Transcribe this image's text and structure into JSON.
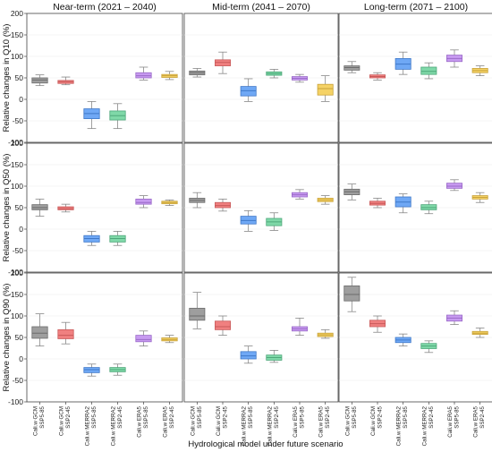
{
  "chart_data": {
    "type": "box",
    "xlabel": "Hydrological model under future scenario",
    "columns": [
      "Near-term (2021 – 2040)",
      "Mid-term (2041 – 2070)",
      "Long-term (2071 – 2100)"
    ],
    "rows": [
      {
        "ylabel": "Relative changes in Q10 (%)"
      },
      {
        "ylabel": "Relative changes in Q50 (%)"
      },
      {
        "ylabel": "Relative changes in Q90 (%)"
      }
    ],
    "ylim": [
      -100,
      200
    ],
    "yticks": [
      -100,
      -50,
      0,
      50,
      100,
      150,
      200
    ],
    "categories": [
      [
        "Cali.w GCM",
        "SSP5-85"
      ],
      [
        "Cali.w GCM",
        "SSP2-45"
      ],
      [
        "Cali.w MERRA2",
        "SSP5-85"
      ],
      [
        "Cali.w MERRA2",
        "SSP2-45"
      ],
      [
        "Cali.w ERA5",
        "SSP5-85"
      ],
      [
        "Cali.w ERA5",
        "SSP2-45"
      ]
    ],
    "colors": [
      "#9e9e9e",
      "#f08080",
      "#6fa8f5",
      "#7fd8a8",
      "#c79af0",
      "#f5d265"
    ],
    "edge_colors": [
      "#6b6b6b",
      "#c85a5a",
      "#3f78c8",
      "#4ea77a",
      "#9a6ac8",
      "#c8a23a"
    ],
    "panels": [
      [
        [
          [
            32,
            38,
            45,
            50,
            57
          ],
          [
            34,
            37,
            41,
            44,
            52
          ],
          [
            -68,
            -45,
            -33,
            -22,
            -5
          ],
          [
            -68,
            -48,
            -38,
            -27,
            -10
          ],
          [
            45,
            50,
            55,
            62,
            75
          ],
          [
            46,
            51,
            55,
            58,
            65
          ]
        ],
        [
          [
            52,
            57,
            62,
            66,
            72
          ],
          [
            60,
            78,
            86,
            92,
            110
          ],
          [
            -5,
            8,
            20,
            30,
            48
          ],
          [
            50,
            56,
            60,
            64,
            70
          ],
          [
            40,
            45,
            49,
            53,
            58
          ],
          [
            -5,
            10,
            25,
            35,
            55
          ]
        ],
        [
          [
            62,
            68,
            74,
            78,
            88
          ],
          [
            45,
            50,
            53,
            57,
            62
          ],
          [
            58,
            70,
            82,
            95,
            110
          ],
          [
            48,
            58,
            65,
            75,
            85
          ],
          [
            75,
            88,
            95,
            103,
            115
          ],
          [
            55,
            62,
            67,
            72,
            78
          ]
        ]
      ],
      [
        [
          [
            30,
            45,
            50,
            57,
            70
          ],
          [
            40,
            45,
            48,
            52,
            58
          ],
          [
            -38,
            -30,
            -22,
            -15,
            -5
          ],
          [
            -38,
            -30,
            -22,
            -15,
            -5
          ],
          [
            50,
            58,
            62,
            70,
            78
          ],
          [
            55,
            59,
            62,
            65,
            68
          ]
        ],
        [
          [
            50,
            62,
            67,
            72,
            85
          ],
          [
            42,
            50,
            55,
            62,
            70
          ],
          [
            -5,
            12,
            20,
            30,
            43
          ],
          [
            -3,
            8,
            17,
            25,
            38
          ],
          [
            70,
            75,
            80,
            85,
            92
          ],
          [
            58,
            64,
            68,
            72,
            78
          ]
        ],
        [
          [
            68,
            80,
            87,
            93,
            105
          ],
          [
            50,
            56,
            60,
            65,
            72
          ],
          [
            38,
            52,
            63,
            75,
            82
          ],
          [
            36,
            45,
            50,
            57,
            65
          ],
          [
            90,
            95,
            100,
            107,
            115
          ],
          [
            62,
            70,
            74,
            78,
            85
          ]
        ]
      ],
      [
        [
          [
            30,
            48,
            60,
            75,
            105
          ],
          [
            35,
            47,
            55,
            68,
            85
          ],
          [
            -40,
            -32,
            -25,
            -20,
            -12
          ],
          [
            -38,
            -30,
            -25,
            -20,
            -12
          ],
          [
            30,
            40,
            45,
            55,
            65
          ],
          [
            38,
            42,
            45,
            49,
            55
          ]
        ],
        [
          [
            70,
            90,
            100,
            118,
            155
          ],
          [
            55,
            68,
            75,
            88,
            100
          ],
          [
            -10,
            0,
            7,
            17,
            30
          ],
          [
            -8,
            -3,
            3,
            9,
            20
          ],
          [
            55,
            65,
            70,
            75,
            95
          ],
          [
            48,
            52,
            56,
            60,
            68
          ]
        ],
        [
          [
            110,
            135,
            150,
            170,
            190
          ],
          [
            62,
            75,
            82,
            90,
            100
          ],
          [
            30,
            38,
            44,
            50,
            58
          ],
          [
            15,
            24,
            30,
            36,
            42
          ],
          [
            80,
            88,
            95,
            102,
            112
          ],
          [
            50,
            57,
            60,
            64,
            72
          ]
        ]
      ]
    ]
  }
}
